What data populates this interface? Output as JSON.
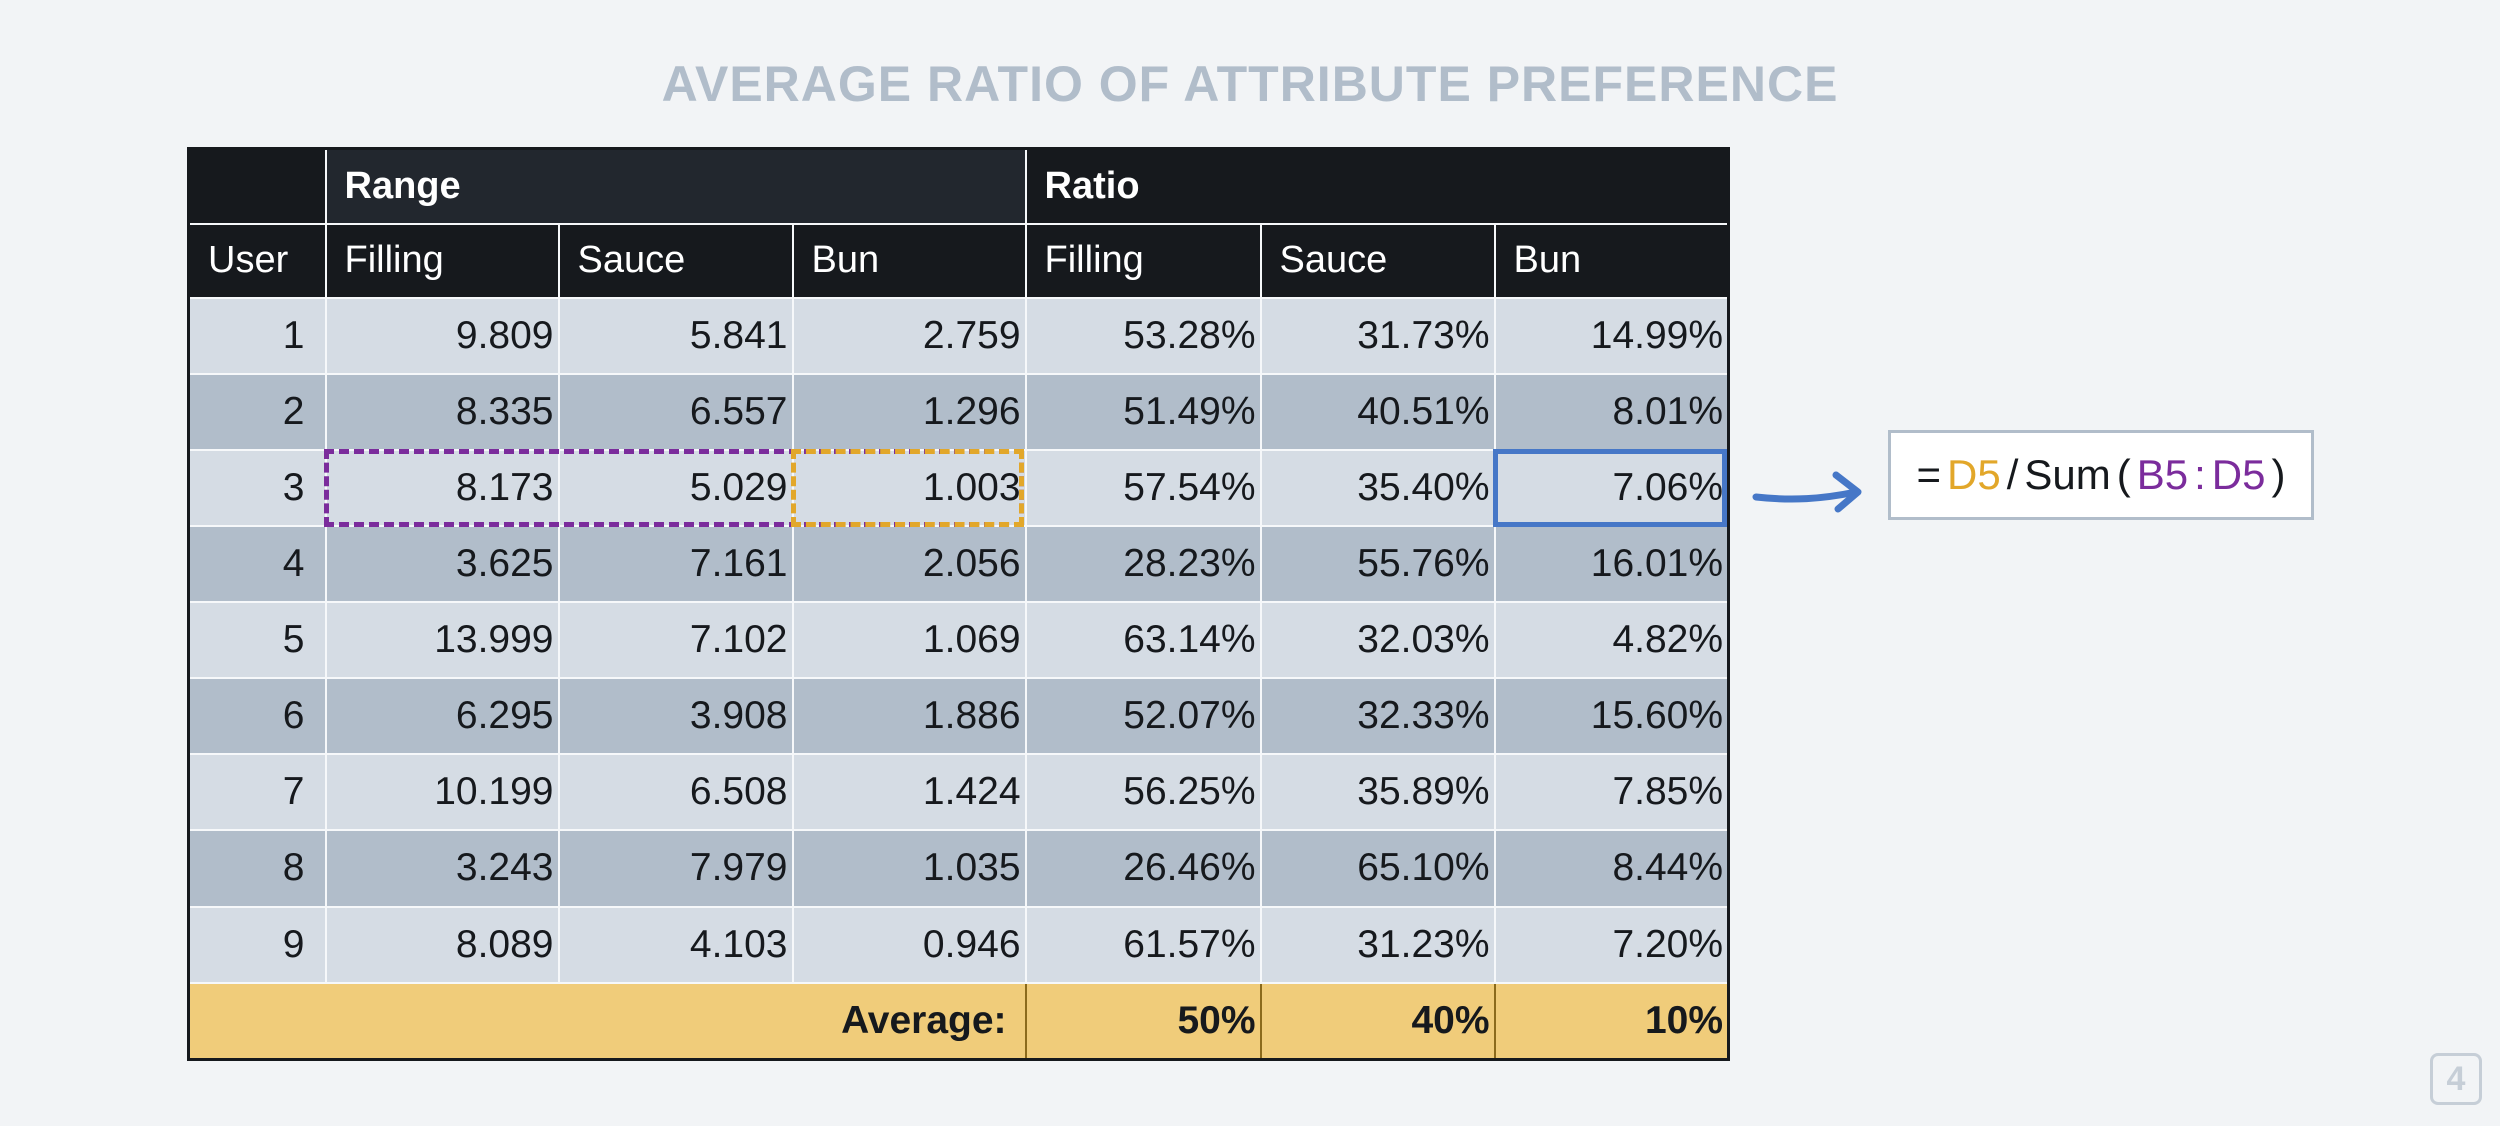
{
  "title": "AVERAGE RATIO OF ATTRIBUTE PREFERENCE",
  "table": {
    "group_headers": {
      "range": "Range",
      "ratio": "Ratio"
    },
    "columns": [
      "User",
      "Filling",
      "Sauce",
      "Bun",
      "Filling",
      "Sauce",
      "Bun"
    ],
    "rows": [
      [
        "1",
        "9.809",
        "5.841",
        "2.759",
        "53.28%",
        "31.73%",
        "14.99%"
      ],
      [
        "2",
        "8.335",
        "6.557",
        "1.296",
        "51.49%",
        "40.51%",
        "8.01%"
      ],
      [
        "3",
        "8.173",
        "5.029",
        "1.003",
        "57.54%",
        "35.40%",
        "7.06%"
      ],
      [
        "4",
        "3.625",
        "7.161",
        "2.056",
        "28.23%",
        "55.76%",
        "16.01%"
      ],
      [
        "5",
        "13.999",
        "7.102",
        "1.069",
        "63.14%",
        "32.03%",
        "4.82%"
      ],
      [
        "6",
        "6.295",
        "3.908",
        "1.886",
        "52.07%",
        "32.33%",
        "15.60%"
      ],
      [
        "7",
        "10.199",
        "6.508",
        "1.424",
        "56.25%",
        "35.89%",
        "7.85%"
      ],
      [
        "8",
        "3.243",
        "7.979",
        "1.035",
        "26.46%",
        "65.10%",
        "8.44%"
      ],
      [
        "9",
        "8.089",
        "4.103",
        "0.946",
        "61.57%",
        "31.23%",
        "7.20%"
      ]
    ],
    "footer": {
      "label": "Average:",
      "filling": "50%",
      "sauce": "40%",
      "bun": "10%"
    }
  },
  "formula": {
    "equals": "=",
    "ref": "D5",
    "divide": "/",
    "func": "Sum",
    "open": "(",
    "start": "B5",
    "colon": ":",
    "end": "D5",
    "close": ")"
  },
  "page_number": "4",
  "colors": {
    "range_highlight": "#7b2c9c",
    "bun_highlight": "#e2a72a",
    "result_highlight": "#4677c7",
    "footer": "#f0cc7a"
  }
}
